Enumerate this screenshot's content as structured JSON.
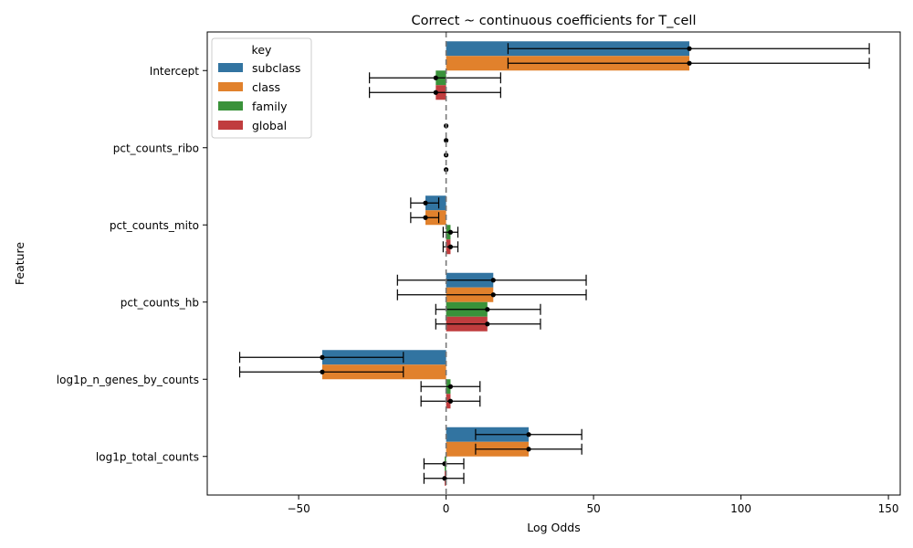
{
  "chart_data": {
    "type": "bar",
    "orientation": "horizontal",
    "title": "Correct ~ continuous coefficients for T_cell",
    "xlabel": "Log Odds",
    "ylabel": "Feature",
    "xlim": [
      -81,
      154
    ],
    "xticks": [
      -50,
      0,
      50,
      100,
      150
    ],
    "xtick_labels": [
      "−50",
      "0",
      "50",
      "100",
      "150"
    ],
    "reference_line_x": 0,
    "grid": false,
    "legend": {
      "title": "key",
      "placement": "top-left",
      "entries": [
        "subclass",
        "class",
        "family",
        "global"
      ]
    },
    "categories": [
      "Intercept",
      "pct_counts_ribo",
      "pct_counts_mito",
      "pct_counts_hb",
      "log1p_n_genes_by_counts",
      "log1p_total_counts"
    ],
    "series": [
      {
        "name": "subclass",
        "color": "#3274a1",
        "values": [
          82.5,
          0.0,
          -7.0,
          16.0,
          -42.0,
          28.0
        ],
        "ci_low": [
          21.0,
          0.0,
          -12.0,
          -16.5,
          -70.0,
          10.0
        ],
        "ci_high": [
          143.5,
          0.0,
          -2.5,
          47.5,
          -14.5,
          46.0
        ]
      },
      {
        "name": "class",
        "color": "#e1812c",
        "values": [
          82.5,
          0.0,
          -7.0,
          16.0,
          -42.0,
          28.0
        ],
        "ci_low": [
          21.0,
          0.0,
          -12.0,
          -16.5,
          -70.0,
          10.0
        ],
        "ci_high": [
          143.5,
          0.0,
          -2.5,
          47.5,
          -14.5,
          46.0
        ]
      },
      {
        "name": "family",
        "color": "#3a923a",
        "values": [
          -3.5,
          0.0,
          1.5,
          14.0,
          1.5,
          -0.5
        ],
        "ci_low": [
          -26.0,
          0.0,
          -1.0,
          -3.5,
          -8.5,
          -7.5
        ],
        "ci_high": [
          18.5,
          0.0,
          4.0,
          32.0,
          11.5,
          6.0
        ]
      },
      {
        "name": "global",
        "color": "#c03d3e",
        "values": [
          -3.5,
          0.0,
          1.5,
          14.0,
          1.5,
          -0.5
        ],
        "ci_low": [
          -26.0,
          0.0,
          -1.0,
          -3.5,
          -8.5,
          -7.5
        ],
        "ci_high": [
          18.5,
          0.0,
          4.0,
          32.0,
          11.5,
          6.0
        ]
      }
    ]
  }
}
